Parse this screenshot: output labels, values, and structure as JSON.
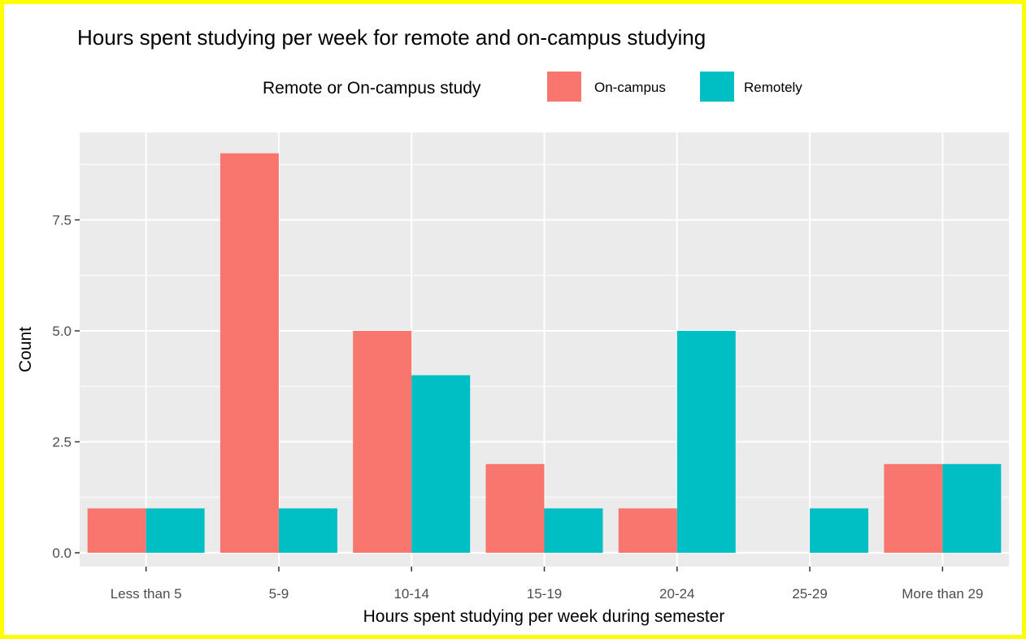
{
  "chart_data": {
    "type": "bar",
    "title": "Hours spent studying per week for remote and on-campus studying",
    "xlabel": "Hours spent studying per week during semester",
    "ylabel": "Count",
    "categories": [
      "Less than 5",
      "5-9",
      "10-14",
      "15-19",
      "20-24",
      "25-29",
      "More than 29"
    ],
    "series": [
      {
        "name": "On-campus",
        "color": "#f8766d",
        "values": [
          1,
          9,
          5,
          2,
          1,
          0,
          2
        ]
      },
      {
        "name": "Remotely",
        "color": "#00bfc4",
        "values": [
          1,
          1,
          4,
          1,
          5,
          1,
          2
        ]
      }
    ],
    "legend_title": "Remote or On-campus study",
    "legend_position": "top",
    "ylim": [
      0,
      9.5
    ],
    "yticks": [
      0,
      2.5,
      5,
      7.5
    ],
    "ytick_labels": [
      "0.0",
      "2.5",
      "5.0",
      "7.5"
    ],
    "grid": true,
    "panel_background": "#ebebeb",
    "border_color": "#ffff00"
  }
}
